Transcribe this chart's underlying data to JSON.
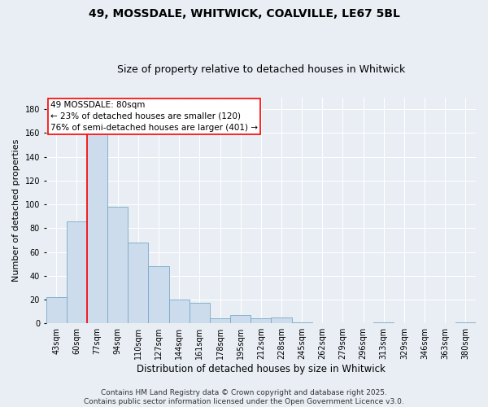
{
  "title1": "49, MOSSDALE, WHITWICK, COALVILLE, LE67 5BL",
  "title2": "Size of property relative to detached houses in Whitwick",
  "xlabel": "Distribution of detached houses by size in Whitwick",
  "ylabel": "Number of detached properties",
  "bins": [
    "43sqm",
    "60sqm",
    "77sqm",
    "94sqm",
    "110sqm",
    "127sqm",
    "144sqm",
    "161sqm",
    "178sqm",
    "195sqm",
    "212sqm",
    "228sqm",
    "245sqm",
    "262sqm",
    "279sqm",
    "296sqm",
    "313sqm",
    "329sqm",
    "346sqm",
    "363sqm",
    "380sqm"
  ],
  "values": [
    22,
    86,
    170,
    98,
    68,
    48,
    20,
    17,
    4,
    7,
    4,
    5,
    1,
    0,
    0,
    0,
    1,
    0,
    0,
    0,
    1
  ],
  "bar_color": "#ccdcec",
  "bar_edge_color": "#7aaac8",
  "vline_color": "red",
  "vline_xindex": 2,
  "annotation_text": "49 MOSSDALE: 80sqm\n← 23% of detached houses are smaller (120)\n76% of semi-detached houses are larger (401) →",
  "annotation_box_color": "white",
  "annotation_box_edge_color": "red",
  "ylim": [
    0,
    190
  ],
  "yticks": [
    0,
    20,
    40,
    60,
    80,
    100,
    120,
    140,
    160,
    180
  ],
  "bg_color": "#e8eef4",
  "grid_color": "white",
  "footer": "Contains HM Land Registry data © Crown copyright and database right 2025.\nContains public sector information licensed under the Open Government Licence v3.0.",
  "title1_fontsize": 10,
  "title2_fontsize": 9,
  "xlabel_fontsize": 8.5,
  "ylabel_fontsize": 8,
  "tick_fontsize": 7,
  "annot_fontsize": 7.5,
  "footer_fontsize": 6.5
}
